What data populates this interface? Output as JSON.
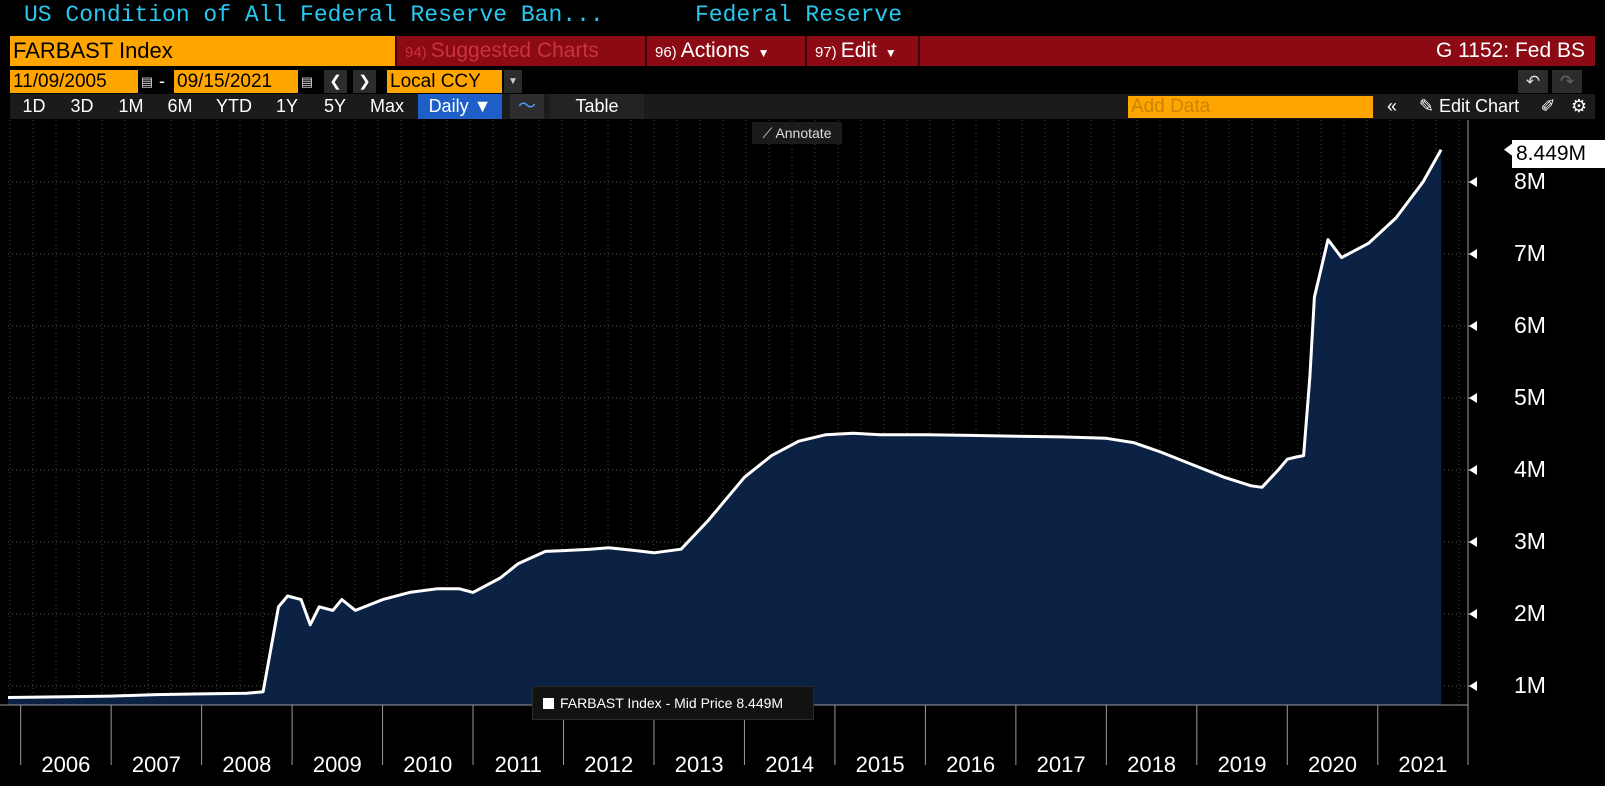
{
  "header": {
    "title": "US Condition of All Federal Reserve Ban...",
    "source": "Federal Reserve"
  },
  "ticker_bar": {
    "ticker": "FARBAST Index",
    "suggested_num": "94)",
    "suggested_label": "Suggested Charts",
    "actions_num": "96)",
    "actions_label": "Actions",
    "edit_num": "97)",
    "edit_label": "Edit",
    "sheet_label": "G 1152: Fed BS"
  },
  "date_range": {
    "start": "11/09/2005",
    "separator": "-",
    "end": "09/15/2021",
    "currency": "Local CCY"
  },
  "toolbar": {
    "periods": [
      "1D",
      "3D",
      "1M",
      "6M",
      "YTD",
      "1Y",
      "5Y",
      "Max"
    ],
    "frequency": "Daily",
    "table_label": "Table",
    "add_data_placeholder": "Add Data",
    "edit_chart_label": "Edit Chart"
  },
  "annotate_label": "Annotate",
  "legend": {
    "text": "FARBAST Index - Mid Price 8.449M"
  },
  "last_value_label": "8.449M",
  "colors": {
    "background": "#000000",
    "fill": "#0c2244",
    "line": "#ffffff",
    "accent_orange": "#ffa500",
    "bar_red": "#8c0a14",
    "title_cyan": "#27c7ef",
    "daily_blue": "#1d5fc6"
  },
  "chart_data": {
    "type": "area",
    "title": "",
    "xlabel": "",
    "ylabel": "",
    "series": [
      {
        "name": "FARBAST Index - Mid Price",
        "x": [
          2005.86,
          2006.5,
          2007.0,
          2007.5,
          2008.0,
          2008.5,
          2008.68,
          2008.85,
          2008.95,
          2009.1,
          2009.2,
          2009.3,
          2009.45,
          2009.55,
          2009.7,
          2010.0,
          2010.3,
          2010.6,
          2010.85,
          2011.0,
          2011.3,
          2011.5,
          2011.8,
          2012.0,
          2012.3,
          2012.5,
          2012.8,
          2013.0,
          2013.3,
          2013.6,
          2014.0,
          2014.3,
          2014.6,
          2014.9,
          2015.2,
          2015.5,
          2016.0,
          2016.5,
          2017.0,
          2017.5,
          2018.0,
          2018.3,
          2018.6,
          2019.0,
          2019.3,
          2019.6,
          2019.72,
          2019.9,
          2020.0,
          2020.1,
          2020.18,
          2020.25,
          2020.3,
          2020.45,
          2020.6,
          2020.9,
          2021.2,
          2021.5,
          2021.7
        ],
        "values": [
          0.84,
          0.85,
          0.86,
          0.88,
          0.89,
          0.9,
          0.92,
          2.1,
          2.25,
          2.2,
          1.85,
          2.1,
          2.05,
          2.2,
          2.05,
          2.2,
          2.3,
          2.35,
          2.35,
          2.3,
          2.5,
          2.7,
          2.87,
          2.88,
          2.9,
          2.92,
          2.88,
          2.85,
          2.9,
          3.3,
          3.9,
          4.2,
          4.4,
          4.49,
          4.51,
          4.49,
          4.49,
          4.48,
          4.47,
          4.46,
          4.44,
          4.38,
          4.25,
          4.05,
          3.9,
          3.78,
          3.76,
          4.0,
          4.15,
          4.18,
          4.2,
          5.3,
          6.4,
          7.2,
          6.95,
          7.15,
          7.5,
          8.0,
          8.449
        ]
      }
    ],
    "y_ticks": [
      "1M",
      "2M",
      "3M",
      "4M",
      "5M",
      "6M",
      "7M",
      "8M"
    ],
    "y_tick_values": [
      1,
      2,
      3,
      4,
      5,
      6,
      7,
      8
    ],
    "x_ticks": [
      "2006",
      "2007",
      "2008",
      "2009",
      "2010",
      "2011",
      "2012",
      "2013",
      "2014",
      "2015",
      "2016",
      "2017",
      "2018",
      "2019",
      "2020",
      "2021"
    ],
    "ylim": [
      0.75,
      8.75
    ],
    "xlim": [
      2005.86,
      2021.71
    ],
    "last_value": 8.449,
    "grid": true,
    "legend_position": "bottom-center"
  }
}
